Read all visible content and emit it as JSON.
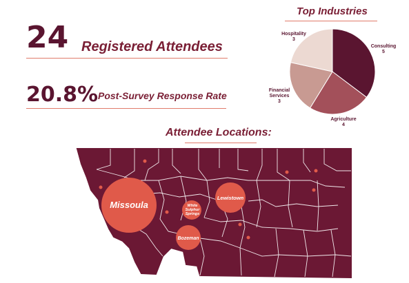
{
  "stats": {
    "attendees_number": "24",
    "attendees_label": "Registered Attendees",
    "response_rate_number": "20.8%",
    "response_rate_label": "Post-Survey Response Rate"
  },
  "industries": {
    "title": "Top Industries",
    "slices": [
      {
        "name": "Consulting",
        "value": "5",
        "color": "#5a1530"
      },
      {
        "name": "Agriculture",
        "value": "4",
        "color": "#a3505a"
      },
      {
        "name": "Financial Services",
        "name_line1": "Financial",
        "name_line2": "Services",
        "value": "3",
        "color": "#c89a92"
      },
      {
        "name": "Hospitality",
        "value": "3",
        "color": "#ecd9d2"
      }
    ]
  },
  "locations": {
    "title": "Attendee Locations:",
    "cities": [
      {
        "name": "Missoula",
        "line1": "Missoula"
      },
      {
        "name": "Lewistown",
        "line1": "Lewistown"
      },
      {
        "name": "White Sulphur Springs",
        "line1": "White",
        "line2": "Sulphur",
        "line3": "Springs"
      },
      {
        "name": "Bozeman",
        "line1": "Bozeman"
      }
    ]
  },
  "colors": {
    "primary": "#5a1530",
    "accent": "#e05a4a",
    "rule": "#e07a6a"
  }
}
